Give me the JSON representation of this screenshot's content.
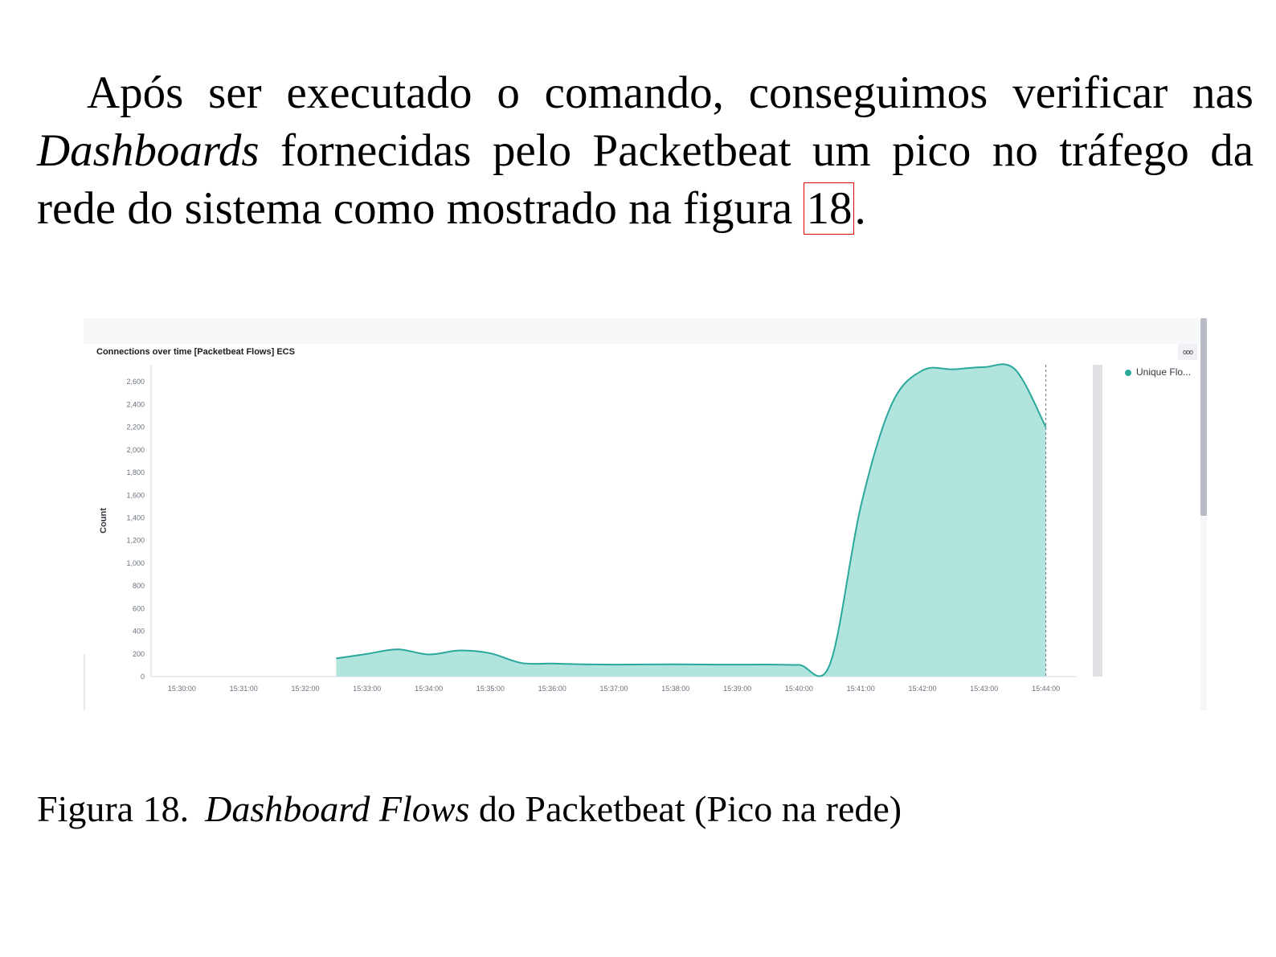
{
  "paragraph": {
    "part1": "Após ser executado o comando, conseguimos verificar nas ",
    "italic": "Dashboards",
    "part2": " fornecidas pelo Packetbeat um pico no tráfego da rede do sistema como mostrado na figura ",
    "ref": "18",
    "end": "."
  },
  "figure": {
    "panel_title": "Connections over time [Packetbeat Flows] ECS",
    "menu_icon": "ellipsis-icon",
    "legend_label": "Unique Flo...",
    "colors": {
      "series": "#2aa89c",
      "fill": "#b2e4de",
      "grid": "#eef0f3",
      "text": "#69707d"
    }
  },
  "chart_data": {
    "type": "area",
    "title": "Connections over time [Packetbeat Flows] ECS",
    "ylabel": "Count",
    "xlabel": "",
    "ylim": [
      0,
      2750
    ],
    "yticks": [
      0,
      200,
      400,
      600,
      800,
      "1,000",
      "1,200",
      "1,400",
      "1,600",
      "1,800",
      "2,000",
      "2,200",
      "2,400",
      "2,600"
    ],
    "xticks": [
      "15:30:00",
      "15:31:00",
      "15:32:00",
      "15:33:00",
      "15:34:00",
      "15:35:00",
      "15:36:00",
      "15:37:00",
      "15:38:00",
      "15:39:00",
      "15:40:00",
      "15:41:00",
      "15:42:00",
      "15:43:00",
      "15:44:00"
    ],
    "legend": "top-right",
    "series": [
      {
        "name": "Unique Flo...",
        "color": "#2aa89c",
        "points": [
          [
            "15:32:30",
            160
          ],
          [
            "15:33:00",
            200
          ],
          [
            "15:33:30",
            240
          ],
          [
            "15:34:00",
            195
          ],
          [
            "15:34:30",
            230
          ],
          [
            "15:35:00",
            205
          ],
          [
            "15:35:30",
            120
          ],
          [
            "15:36:00",
            115
          ],
          [
            "15:36:30",
            108
          ],
          [
            "15:37:00",
            105
          ],
          [
            "15:37:30",
            107
          ],
          [
            "15:38:00",
            108
          ],
          [
            "15:38:30",
            106
          ],
          [
            "15:39:00",
            105
          ],
          [
            "15:39:30",
            106
          ],
          [
            "15:40:00",
            103
          ],
          [
            "15:40:30",
            108
          ],
          [
            "15:41:00",
            1500
          ],
          [
            "15:41:30",
            2400
          ],
          [
            "15:42:00",
            2700
          ],
          [
            "15:42:30",
            2710
          ],
          [
            "15:43:00",
            2730
          ],
          [
            "15:43:30",
            2710
          ],
          [
            "15:44:00",
            2200
          ]
        ]
      }
    ]
  },
  "caption": {
    "label": "Figura 18.",
    "italic": "Dashboard Flows",
    "rest": " do Packetbeat (Pico na rede)"
  }
}
